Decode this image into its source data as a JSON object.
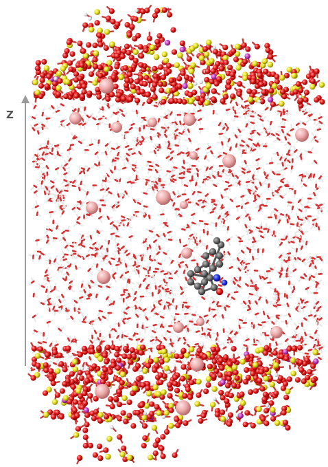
{
  "figure": {
    "axis_label": "Z"
  },
  "colors": {
    "oxygen": "#e01818",
    "silicon": "#e8e020",
    "aluminum": "#c040c0",
    "hydrogen": "#e8e8e8",
    "cation": "#f0b0b0",
    "carbon": "#6a6a6a",
    "nitrogen": "#2030e0",
    "water_oxygen": "#d83030",
    "axis": "#9a9a9a"
  },
  "legend_icons": [
    "water-molecule-icon",
    "cation-sphere-icon",
    "organic-molecule-icon"
  ]
}
